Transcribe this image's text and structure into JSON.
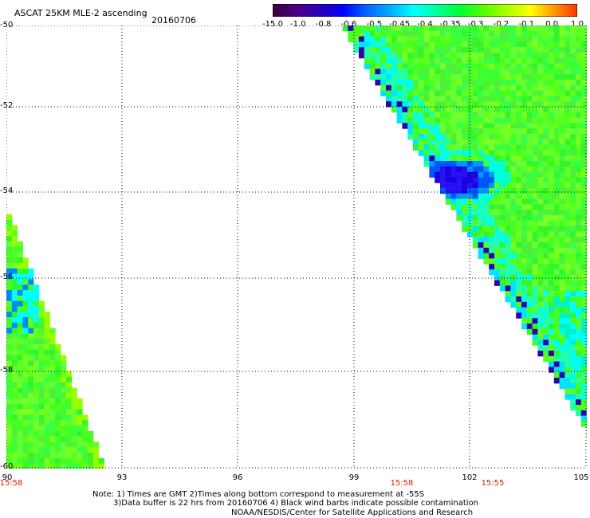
{
  "header": {
    "title": "ASCAT 25KM MLE-2 ascending",
    "date": "20160706"
  },
  "colorbar": {
    "labels": [
      "-15.0",
      "-1.0",
      "-0.8",
      "-0.6",
      "-0.5",
      "-0.45",
      "-0.4",
      "-0.35",
      "-0.3",
      "-0.2",
      "-0.1",
      "0.0",
      "1.0"
    ],
    "colors": [
      "#3a0033",
      "#4b0082",
      "#2a00b8",
      "#0000ff",
      "#0066ff",
      "#00aaff",
      "#00ffff",
      "#00ff99",
      "#00ff33",
      "#55ff00",
      "#aaff00",
      "#ffff00",
      "#ff9900",
      "#ff3300"
    ]
  },
  "map": {
    "lat_labels": [
      "-50",
      "-52",
      "-54",
      "-56",
      "-58",
      "-60"
    ],
    "lon_labels": [
      "90",
      "93",
      "96",
      "99",
      "102",
      "105"
    ],
    "time_labels": [
      "15:58",
      "15:58",
      "15:55"
    ]
  },
  "notes": {
    "line1": "Note: 1) Times are GMT 2)Times along bottom correspond to measurement at -55S",
    "line2": "3)Data buffer is 22 hrs from 20160706 4) Black wind barbs indicate possible contamination",
    "line3": "NOAA/NESDIS/Center for Satellite Applications and Research"
  }
}
